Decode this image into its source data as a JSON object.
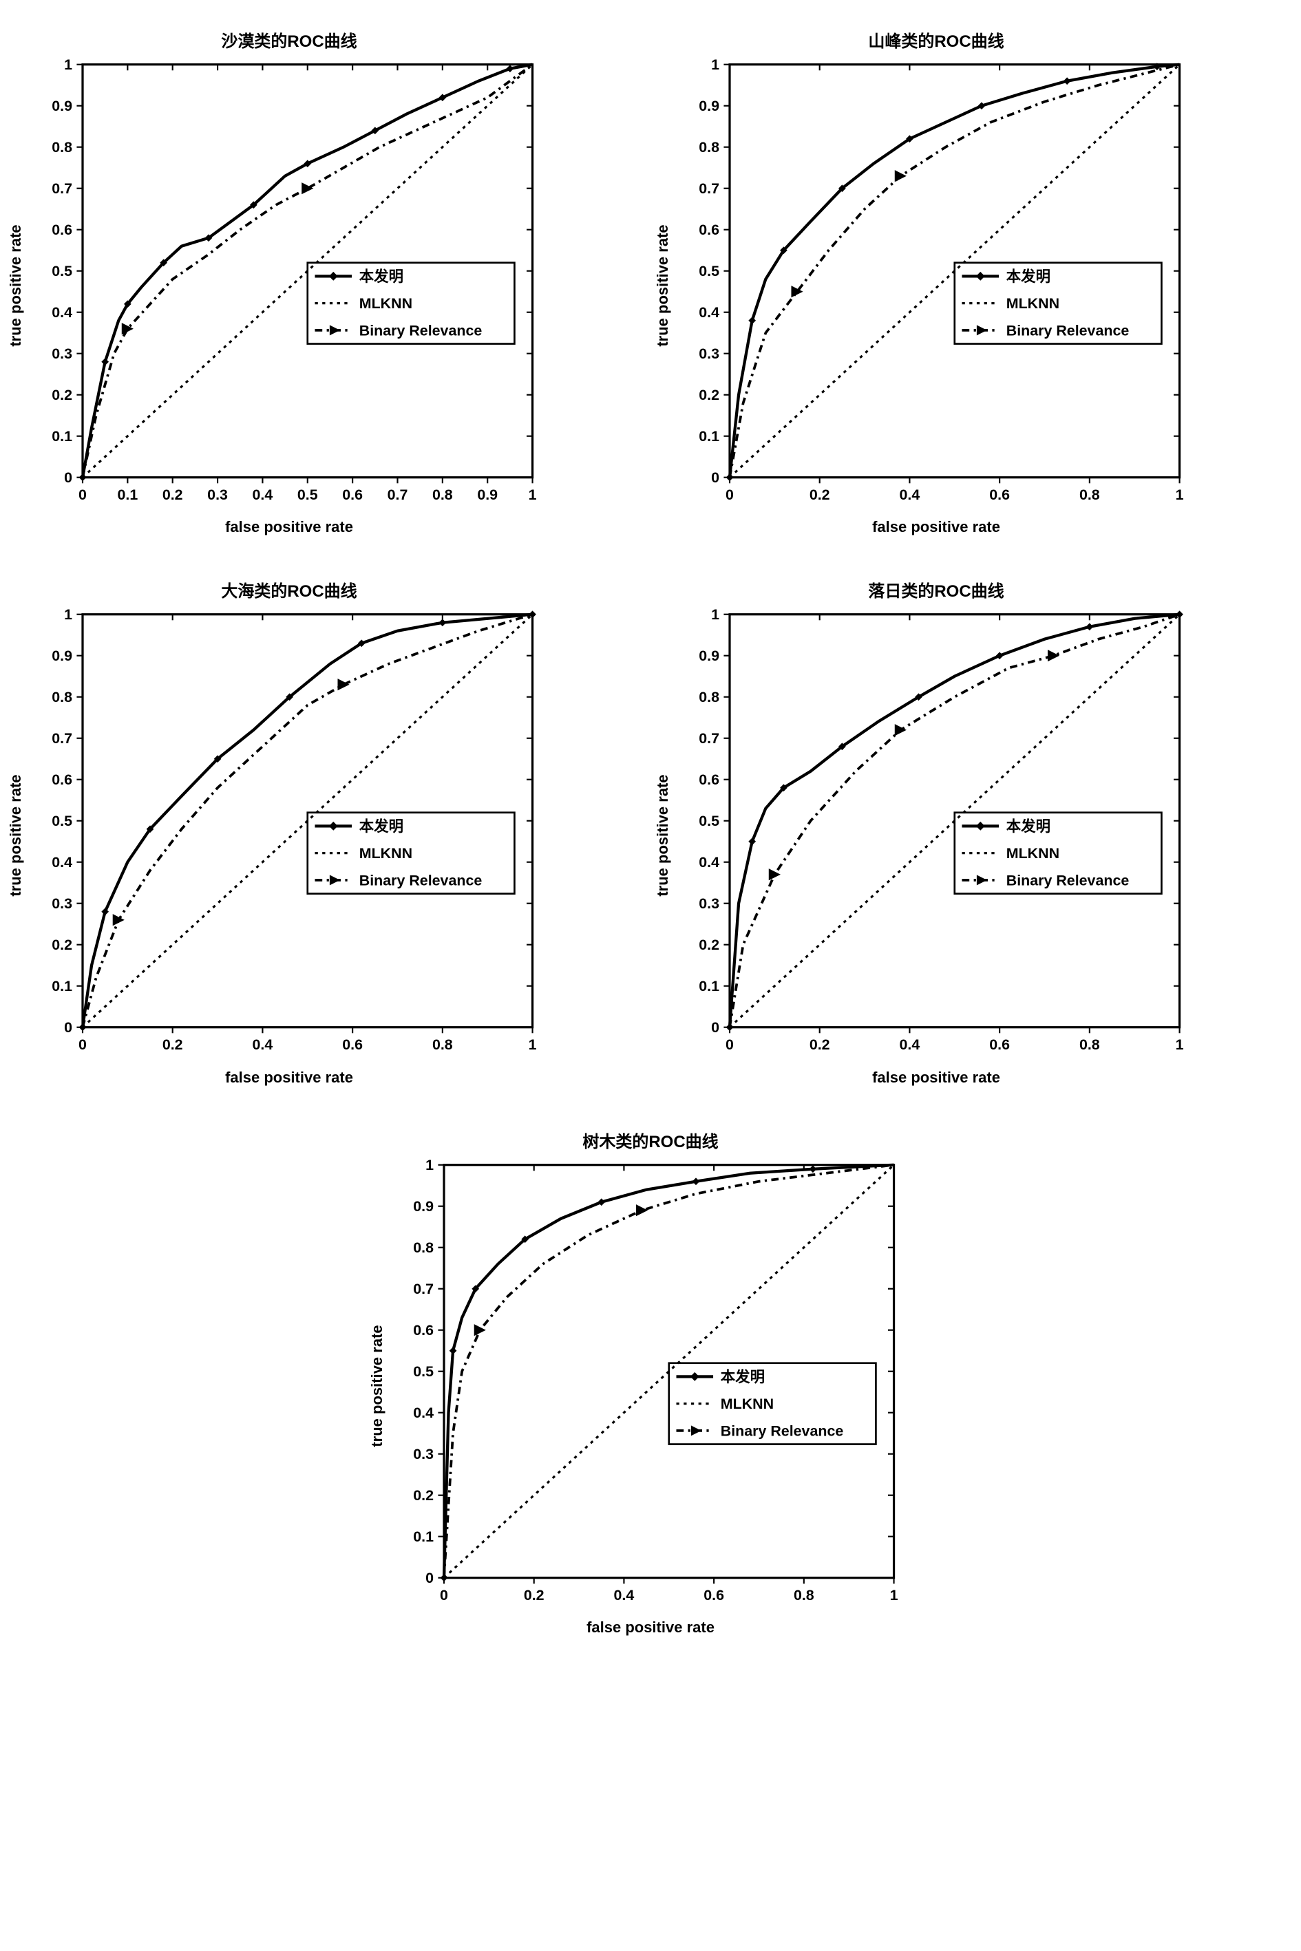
{
  "global": {
    "xlabel": "false positive rate",
    "ylabel": "true positive rate",
    "xlim": [
      0,
      1
    ],
    "ylim": [
      0,
      1
    ],
    "background_color": "#ffffff",
    "axis_color": "#000000",
    "line_color": "#000000",
    "title_fontsize": 24,
    "label_fontsize": 22,
    "tick_fontsize": 20,
    "line_width_main": 4,
    "line_width_diag": 3,
    "line_width_br": 3.5,
    "legend": {
      "entries": [
        {
          "label": "本发明",
          "style": "solid-diamond"
        },
        {
          "label": "MLKNN",
          "style": "dotted"
        },
        {
          "label": "Binary Relevance",
          "style": "dashdot-triangle"
        }
      ],
      "position": "right-middle"
    }
  },
  "charts": [
    {
      "id": "chart1",
      "title": "沙漠类的ROC曲线",
      "xticks": [
        0,
        0.1,
        0.2,
        0.3,
        0.4,
        0.5,
        0.6,
        0.7,
        0.8,
        0.9,
        1
      ],
      "yticks": [
        0,
        0.1,
        0.2,
        0.3,
        0.4,
        0.5,
        0.6,
        0.7,
        0.8,
        0.9,
        1
      ],
      "series_main": [
        [
          0,
          0
        ],
        [
          0.02,
          0.12
        ],
        [
          0.05,
          0.28
        ],
        [
          0.08,
          0.38
        ],
        [
          0.1,
          0.42
        ],
        [
          0.13,
          0.46
        ],
        [
          0.18,
          0.52
        ],
        [
          0.22,
          0.56
        ],
        [
          0.28,
          0.58
        ],
        [
          0.33,
          0.62
        ],
        [
          0.38,
          0.66
        ],
        [
          0.45,
          0.73
        ],
        [
          0.5,
          0.76
        ],
        [
          0.58,
          0.8
        ],
        [
          0.65,
          0.84
        ],
        [
          0.72,
          0.88
        ],
        [
          0.8,
          0.92
        ],
        [
          0.88,
          0.96
        ],
        [
          0.95,
          0.99
        ],
        [
          1,
          1
        ]
      ],
      "series_br": [
        [
          0,
          0
        ],
        [
          0.03,
          0.15
        ],
        [
          0.07,
          0.3
        ],
        [
          0.1,
          0.36
        ],
        [
          0.15,
          0.42
        ],
        [
          0.2,
          0.48
        ],
        [
          0.28,
          0.54
        ],
        [
          0.35,
          0.6
        ],
        [
          0.43,
          0.66
        ],
        [
          0.5,
          0.7
        ],
        [
          0.58,
          0.75
        ],
        [
          0.66,
          0.8
        ],
        [
          0.74,
          0.84
        ],
        [
          0.82,
          0.88
        ],
        [
          0.9,
          0.92
        ],
        [
          1,
          1
        ]
      ],
      "series_diag": [
        [
          0,
          0
        ],
        [
          1,
          1
        ]
      ],
      "br_markers": [
        [
          0.1,
          0.36
        ],
        [
          0.5,
          0.7
        ]
      ]
    },
    {
      "id": "chart2",
      "title": "山峰类的ROC曲线",
      "xticks": [
        0,
        0.2,
        0.4,
        0.6,
        0.8,
        1
      ],
      "yticks": [
        0,
        0.1,
        0.2,
        0.3,
        0.4,
        0.5,
        0.6,
        0.7,
        0.8,
        0.9,
        1
      ],
      "series_main": [
        [
          0,
          0
        ],
        [
          0.02,
          0.2
        ],
        [
          0.05,
          0.38
        ],
        [
          0.08,
          0.48
        ],
        [
          0.12,
          0.55
        ],
        [
          0.18,
          0.62
        ],
        [
          0.25,
          0.7
        ],
        [
          0.32,
          0.76
        ],
        [
          0.4,
          0.82
        ],
        [
          0.48,
          0.86
        ],
        [
          0.56,
          0.9
        ],
        [
          0.65,
          0.93
        ],
        [
          0.75,
          0.96
        ],
        [
          0.85,
          0.98
        ],
        [
          0.95,
          0.995
        ],
        [
          1,
          1
        ]
      ],
      "series_br": [
        [
          0,
          0
        ],
        [
          0.03,
          0.18
        ],
        [
          0.08,
          0.35
        ],
        [
          0.15,
          0.45
        ],
        [
          0.22,
          0.55
        ],
        [
          0.3,
          0.65
        ],
        [
          0.38,
          0.73
        ],
        [
          0.48,
          0.8
        ],
        [
          0.58,
          0.86
        ],
        [
          0.7,
          0.91
        ],
        [
          0.82,
          0.95
        ],
        [
          1,
          1
        ]
      ],
      "series_diag": [
        [
          0,
          0
        ],
        [
          1,
          1
        ]
      ],
      "br_markers": [
        [
          0.15,
          0.45
        ],
        [
          0.38,
          0.73
        ]
      ]
    },
    {
      "id": "chart3",
      "title": "大海类的ROC曲线",
      "xticks": [
        0,
        0.2,
        0.4,
        0.6,
        0.8,
        1
      ],
      "yticks": [
        0,
        0.1,
        0.2,
        0.3,
        0.4,
        0.5,
        0.6,
        0.7,
        0.8,
        0.9,
        1
      ],
      "series_main": [
        [
          0,
          0
        ],
        [
          0.02,
          0.15
        ],
        [
          0.05,
          0.28
        ],
        [
          0.1,
          0.4
        ],
        [
          0.15,
          0.48
        ],
        [
          0.22,
          0.56
        ],
        [
          0.3,
          0.65
        ],
        [
          0.38,
          0.72
        ],
        [
          0.46,
          0.8
        ],
        [
          0.55,
          0.88
        ],
        [
          0.62,
          0.93
        ],
        [
          0.7,
          0.96
        ],
        [
          0.8,
          0.98
        ],
        [
          0.9,
          0.99
        ],
        [
          1,
          1
        ]
      ],
      "series_br": [
        [
          0,
          0
        ],
        [
          0.03,
          0.12
        ],
        [
          0.08,
          0.26
        ],
        [
          0.15,
          0.38
        ],
        [
          0.22,
          0.48
        ],
        [
          0.3,
          0.58
        ],
        [
          0.4,
          0.68
        ],
        [
          0.5,
          0.78
        ],
        [
          0.58,
          0.83
        ],
        [
          0.68,
          0.88
        ],
        [
          0.78,
          0.92
        ],
        [
          0.88,
          0.96
        ],
        [
          1,
          1
        ]
      ],
      "series_diag": [
        [
          0,
          0
        ],
        [
          1,
          1
        ]
      ],
      "br_markers": [
        [
          0.08,
          0.26
        ],
        [
          0.58,
          0.83
        ]
      ]
    },
    {
      "id": "chart4",
      "title": "落日类的ROC曲线",
      "xticks": [
        0,
        0.2,
        0.4,
        0.6,
        0.8,
        1
      ],
      "yticks": [
        0,
        0.1,
        0.2,
        0.3,
        0.4,
        0.5,
        0.6,
        0.7,
        0.8,
        0.9,
        1
      ],
      "series_main": [
        [
          0,
          0
        ],
        [
          0.02,
          0.3
        ],
        [
          0.05,
          0.45
        ],
        [
          0.08,
          0.53
        ],
        [
          0.12,
          0.58
        ],
        [
          0.18,
          0.62
        ],
        [
          0.25,
          0.68
        ],
        [
          0.33,
          0.74
        ],
        [
          0.42,
          0.8
        ],
        [
          0.5,
          0.85
        ],
        [
          0.6,
          0.9
        ],
        [
          0.7,
          0.94
        ],
        [
          0.8,
          0.97
        ],
        [
          0.9,
          0.99
        ],
        [
          1,
          1
        ]
      ],
      "series_br": [
        [
          0,
          0
        ],
        [
          0.03,
          0.2
        ],
        [
          0.1,
          0.37
        ],
        [
          0.18,
          0.5
        ],
        [
          0.28,
          0.62
        ],
        [
          0.38,
          0.72
        ],
        [
          0.5,
          0.8
        ],
        [
          0.62,
          0.87
        ],
        [
          0.72,
          0.9
        ],
        [
          0.82,
          0.94
        ],
        [
          0.92,
          0.97
        ],
        [
          1,
          1
        ]
      ],
      "series_diag": [
        [
          0,
          0
        ],
        [
          1,
          1
        ]
      ],
      "br_markers": [
        [
          0.1,
          0.37
        ],
        [
          0.38,
          0.72
        ],
        [
          0.72,
          0.9
        ]
      ]
    },
    {
      "id": "chart5",
      "title": "树木类的ROC曲线",
      "xticks": [
        0,
        0.2,
        0.4,
        0.6,
        0.8,
        1
      ],
      "yticks": [
        0,
        0.1,
        0.2,
        0.3,
        0.4,
        0.5,
        0.6,
        0.7,
        0.8,
        0.9,
        1
      ],
      "series_main": [
        [
          0,
          0
        ],
        [
          0.01,
          0.4
        ],
        [
          0.02,
          0.55
        ],
        [
          0.04,
          0.63
        ],
        [
          0.07,
          0.7
        ],
        [
          0.12,
          0.76
        ],
        [
          0.18,
          0.82
        ],
        [
          0.26,
          0.87
        ],
        [
          0.35,
          0.91
        ],
        [
          0.45,
          0.94
        ],
        [
          0.56,
          0.96
        ],
        [
          0.68,
          0.98
        ],
        [
          0.82,
          0.99
        ],
        [
          1,
          1
        ]
      ],
      "series_br": [
        [
          0,
          0
        ],
        [
          0.02,
          0.35
        ],
        [
          0.04,
          0.5
        ],
        [
          0.08,
          0.6
        ],
        [
          0.14,
          0.68
        ],
        [
          0.22,
          0.76
        ],
        [
          0.32,
          0.83
        ],
        [
          0.44,
          0.89
        ],
        [
          0.56,
          0.93
        ],
        [
          0.7,
          0.96
        ],
        [
          0.85,
          0.98
        ],
        [
          1,
          1
        ]
      ],
      "series_diag": [
        [
          0,
          0
        ],
        [
          1,
          1
        ]
      ],
      "br_markers": [
        [
          0.08,
          0.6
        ],
        [
          0.44,
          0.89
        ]
      ]
    }
  ]
}
